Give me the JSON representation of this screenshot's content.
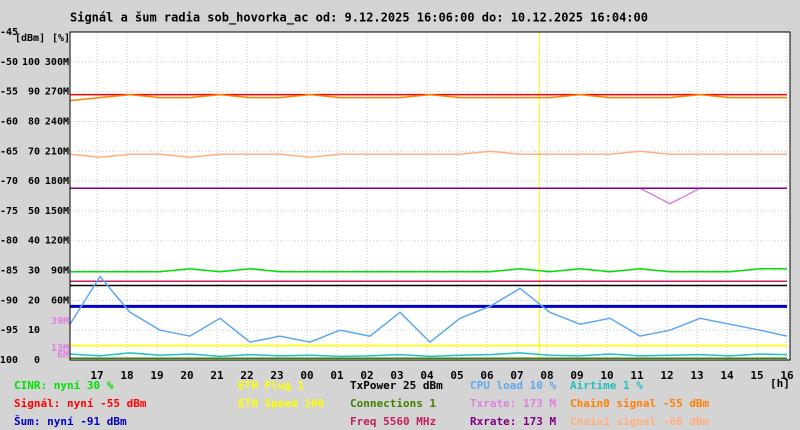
{
  "chart_data": {
    "type": "line",
    "title": "Signál a šum radia sob_hovorka_ac od: 9.12.2025 16:06:00 do: 10.12.2025 16:04:00",
    "y_unit": "[dBm]",
    "pct_unit": "[%]",
    "x_unit": "[h]",
    "x": [
      0,
      1,
      2,
      3,
      4,
      5,
      6,
      7,
      8,
      9,
      10,
      11,
      12,
      13,
      14,
      15,
      16,
      17,
      18,
      19,
      20,
      21,
      22,
      23,
      23.9
    ],
    "xlim": [
      0,
      24
    ],
    "xticks": [
      {
        "value": 0.9,
        "label": "17"
      },
      {
        "value": 1.9,
        "label": "18"
      },
      {
        "value": 2.9,
        "label": "19"
      },
      {
        "value": 3.9,
        "label": "20"
      },
      {
        "value": 4.9,
        "label": "21"
      },
      {
        "value": 5.9,
        "label": "22"
      },
      {
        "value": 6.9,
        "label": "23"
      },
      {
        "value": 7.9,
        "label": "00"
      },
      {
        "value": 8.9,
        "label": "01"
      },
      {
        "value": 9.9,
        "label": "02"
      },
      {
        "value": 10.9,
        "label": "03"
      },
      {
        "value": 11.9,
        "label": "04"
      },
      {
        "value": 12.9,
        "label": "05"
      },
      {
        "value": 13.9,
        "label": "06"
      },
      {
        "value": 14.9,
        "label": "07"
      },
      {
        "value": 15.9,
        "label": "08"
      },
      {
        "value": 16.9,
        "label": "09"
      },
      {
        "value": 17.9,
        "label": "10"
      },
      {
        "value": 18.9,
        "label": "11"
      },
      {
        "value": 19.9,
        "label": "12"
      },
      {
        "value": 20.9,
        "label": "13"
      },
      {
        "value": 21.9,
        "label": "14"
      },
      {
        "value": 22.9,
        "label": "15"
      },
      {
        "value": 23.9,
        "label": "16"
      }
    ],
    "ylim": [
      -100,
      -45
    ],
    "yticks": [
      -45,
      -50,
      -55,
      -60,
      -65,
      -70,
      -75,
      -80,
      -85,
      -90,
      -95,
      -100
    ],
    "pct_ticks": [
      {
        "value": -50,
        "label": "100"
      },
      {
        "value": -55,
        "label": "90"
      },
      {
        "value": -60,
        "label": "80"
      },
      {
        "value": -65,
        "label": "70"
      },
      {
        "value": -70,
        "label": "60"
      },
      {
        "value": -75,
        "label": "50"
      },
      {
        "value": -80,
        "label": "40"
      },
      {
        "value": -85,
        "label": "30"
      },
      {
        "value": -90,
        "label": "20"
      },
      {
        "value": -95,
        "label": "10"
      },
      {
        "value": -100,
        "label": "0"
      }
    ],
    "rate_ticks": [
      {
        "value": -50,
        "label": "300M"
      },
      {
        "value": -55,
        "label": "270M"
      },
      {
        "value": -60,
        "label": "240M"
      },
      {
        "value": -65,
        "label": "210M"
      },
      {
        "value": -70,
        "label": "180M"
      },
      {
        "value": -75,
        "label": "150M"
      },
      {
        "value": -80,
        "label": "120M"
      },
      {
        "value": -85,
        "label": "90M"
      },
      {
        "value": -90,
        "label": "60M"
      }
    ],
    "rate_markers": {
      "color": "#e080e0",
      "items": [
        {
          "value": -93.5,
          "label": "39M"
        },
        {
          "value": -98,
          "label": "13M"
        },
        {
          "value": -99.2,
          "label": "6M"
        }
      ]
    },
    "vline": {
      "x": 15.65,
      "color": "#ffff00"
    },
    "grid": true,
    "series": [
      {
        "name": "CINR: nyní 30 %",
        "color": "#00e000",
        "values": [
          -85.2,
          -85.2,
          -85.2,
          -85.2,
          -84.7,
          -85.2,
          -84.7,
          -85.2,
          -85.2,
          -85.2,
          -85.2,
          -85.2,
          -85.2,
          -85.2,
          -85.2,
          -84.7,
          -85.2,
          -84.7,
          -85.2,
          -84.7,
          -85.2,
          -85.2,
          -85.2,
          -84.7,
          -84.7
        ]
      },
      {
        "name": "Signál: nyní -55 dBm",
        "color": "#ff0000",
        "values": [
          -55.5,
          -55.5,
          -55.5,
          -55.5,
          -55.5,
          -55.5,
          -55.5,
          -55.5,
          -55.5,
          -55.5,
          -55.5,
          -55.5,
          -55.5,
          -55.5,
          -55.5,
          -55.5,
          -55.5,
          -55.5,
          -55.5,
          -55.5,
          -55.5,
          -55.5,
          -55.5,
          -55.5,
          -55.5
        ]
      },
      {
        "name": "Šum: nyní -91 dBm",
        "color": "#0000c0",
        "values": [
          -91,
          -91,
          -91,
          -91,
          -91,
          -91,
          -91,
          -91,
          -91,
          -91,
          -91,
          -91,
          -91,
          -91,
          -91,
          -91,
          -91,
          -91,
          -91,
          -91,
          -91,
          -91,
          -91,
          -91,
          -91
        ]
      },
      {
        "name": "ETH Plug 1",
        "color": "#ffff00",
        "values": [
          -97.6,
          -97.6,
          -97.6,
          -97.6,
          -97.6,
          -97.6,
          -97.6,
          -97.6,
          -97.6,
          -97.6,
          -97.6,
          -97.6,
          -97.6,
          -97.6,
          -97.6,
          -97.6,
          -97.6,
          -97.6,
          -97.6,
          -97.6,
          -97.6,
          -97.6,
          -97.6,
          -97.6,
          -97.6
        ]
      },
      {
        "name": "ETH Speed 100",
        "color": "#ffff00",
        "values": [
          -97.6,
          -97.6,
          -97.6,
          -97.6,
          -97.6,
          -97.6,
          -97.6,
          -97.6,
          -97.6,
          -97.6,
          -97.6,
          -97.6,
          -97.6,
          -97.6,
          -97.6,
          -97.6,
          -97.6,
          -97.6,
          -97.6,
          -97.6,
          -97.6,
          -97.6,
          -97.6,
          -97.6,
          -97.6
        ]
      },
      {
        "name": "TxPower 25 dBm",
        "color": "#000000",
        "values": [
          -87.5,
          -87.5,
          -87.5,
          -87.5,
          -87.5,
          -87.5,
          -87.5,
          -87.5,
          -87.5,
          -87.5,
          -87.5,
          -87.5,
          -87.5,
          -87.5,
          -87.5,
          -87.5,
          -87.5,
          -87.5,
          -87.5,
          -87.5,
          -87.5,
          -87.5,
          -87.5,
          -87.5,
          -87.5
        ]
      },
      {
        "name": "Connections 1",
        "color": "#408000",
        "values": [
          -99.7,
          -99.7,
          -99.7,
          -99.7,
          -99.7,
          -99.7,
          -99.7,
          -99.7,
          -99.7,
          -99.7,
          -99.7,
          -99.7,
          -99.7,
          -99.7,
          -99.7,
          -99.7,
          -99.7,
          -99.7,
          -99.7,
          -99.7,
          -99.7,
          -99.7,
          -99.7,
          -99.7,
          -99.7
        ]
      },
      {
        "name": "Freq 5560 MHz",
        "color": "#c02060",
        "values": [
          -86.8,
          -86.8,
          -86.8,
          -86.8,
          -86.8,
          -86.8,
          -86.8,
          -86.8,
          -86.8,
          -86.8,
          -86.8,
          -86.8,
          -86.8,
          -86.8,
          -86.8,
          -86.8,
          -86.8,
          -86.8,
          -86.8,
          -86.8,
          -86.8,
          -86.8,
          -86.8,
          -86.8,
          -86.8
        ]
      },
      {
        "name": "CPU load 10 %",
        "color": "#60a8f0",
        "values": [
          -94,
          -86,
          -92,
          -95,
          -96,
          -93,
          -97,
          -96,
          -97,
          -95,
          -96,
          -92,
          -97,
          -93,
          -91,
          -88,
          -92,
          -94,
          -93,
          -96,
          -95,
          -93,
          -94,
          -95,
          -96
        ]
      },
      {
        "name": "Txrate: 173 M",
        "color": "#e080e0",
        "values": [
          -71.2,
          -71.2,
          -71.2,
          -71.2,
          -71.2,
          -71.2,
          -71.2,
          -71.2,
          -71.2,
          -71.2,
          -71.2,
          -71.2,
          -71.2,
          -71.2,
          -71.2,
          -71.2,
          -71.2,
          -71.2,
          -71.2,
          -71.2,
          -73.8,
          -71.2,
          -71.2,
          -71.2,
          -71.2
        ]
      },
      {
        "name": "Rxrate: 173 M",
        "color": "#800080",
        "values": [
          -71.2,
          -71.2,
          -71.2,
          -71.2,
          -71.2,
          -71.2,
          -71.2,
          -71.2,
          -71.2,
          -71.2,
          -71.2,
          -71.2,
          -71.2,
          -71.2,
          -71.2,
          -71.2,
          -71.2,
          -71.2,
          -71.2,
          -71.2,
          -71.2,
          -71.2,
          -71.2,
          -71.2,
          -71.2
        ]
      },
      {
        "name": "Airtime 1 %",
        "color": "#20c0c0",
        "values": [
          -99,
          -99.3,
          -98.8,
          -99.2,
          -99,
          -99.4,
          -99.1,
          -99.3,
          -99.2,
          -99.4,
          -99.3,
          -99.1,
          -99.4,
          -99.2,
          -99.1,
          -98.8,
          -99.2,
          -99.3,
          -99,
          -99.3,
          -99.2,
          -99.1,
          -99.3,
          -99,
          -99.1
        ]
      },
      {
        "name": "Chain0 signal -55 dBm",
        "color": "#ff8000",
        "values": [
          -56.5,
          -56,
          -55.5,
          -56,
          -56,
          -55.5,
          -56,
          -56,
          -55.5,
          -56,
          -56,
          -56,
          -55.5,
          -56,
          -56,
          -56,
          -56,
          -55.5,
          -56,
          -56,
          -56,
          -55.5,
          -56,
          -56,
          -56
        ]
      },
      {
        "name": "Chain1 signal -66 dBm",
        "color": "#ffb080",
        "values": [
          -65.5,
          -66,
          -65.5,
          -65.5,
          -66,
          -65.5,
          -65.5,
          -65.5,
          -66,
          -65.5,
          -65.5,
          -65.5,
          -65.5,
          -65.5,
          -65,
          -65.5,
          -65.5,
          -65.5,
          -65.5,
          -65,
          -65.5,
          -65.5,
          -65.5,
          -65.5,
          -65.5
        ]
      }
    ]
  }
}
